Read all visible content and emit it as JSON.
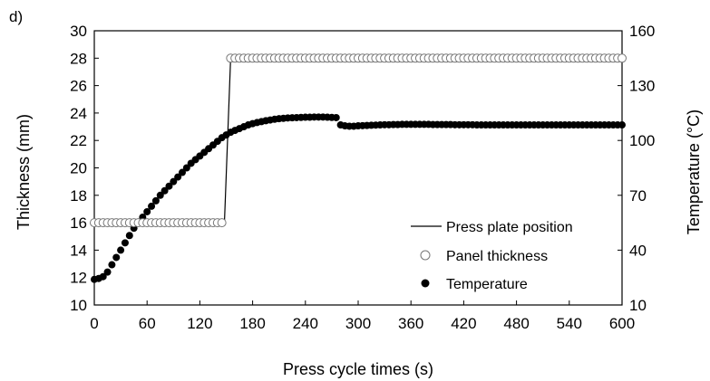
{
  "panel_label": "d)",
  "chart_data": {
    "type": "line",
    "xlabel": "Press cycle times (s)",
    "ylabel": "Thickness (mm)",
    "y2label": "Temperature (°C)",
    "xlim": [
      0,
      600
    ],
    "ylim": [
      10,
      30
    ],
    "y2lim": [
      10,
      160
    ],
    "x_ticks": [
      0,
      60,
      120,
      180,
      240,
      300,
      360,
      420,
      480,
      540,
      600
    ],
    "y_ticks": [
      10,
      12,
      14,
      16,
      18,
      20,
      22,
      24,
      26,
      28,
      30
    ],
    "y2_ticks": [
      10,
      40,
      70,
      100,
      130,
      160
    ],
    "grid": false,
    "legend_position": "bottom-right",
    "legend": [
      "Press plate position",
      "Panel thickness",
      "Temperature"
    ],
    "series": [
      {
        "name": "Press plate position",
        "axis": "left",
        "style": "line",
        "x": [
          0,
          148,
          155,
          600
        ],
        "y": [
          16.1,
          16.1,
          28.0,
          28.0
        ]
      },
      {
        "name": "Panel thickness",
        "axis": "left",
        "style": "open-circle",
        "x": [
          0,
          5,
          10,
          15,
          20,
          25,
          30,
          35,
          40,
          45,
          50,
          55,
          60,
          65,
          70,
          75,
          80,
          85,
          90,
          95,
          100,
          105,
          110,
          115,
          120,
          125,
          130,
          135,
          140,
          145,
          155,
          160,
          165,
          170,
          175,
          180,
          185,
          190,
          195,
          200,
          205,
          210,
          215,
          220,
          225,
          230,
          235,
          240,
          245,
          250,
          255,
          260,
          265,
          270,
          275,
          280,
          285,
          290,
          295,
          300,
          305,
          310,
          315,
          320,
          325,
          330,
          335,
          340,
          345,
          350,
          355,
          360,
          365,
          370,
          375,
          380,
          385,
          390,
          395,
          400,
          405,
          410,
          415,
          420,
          425,
          430,
          435,
          440,
          445,
          450,
          455,
          460,
          465,
          470,
          475,
          480,
          485,
          490,
          495,
          500,
          505,
          510,
          515,
          520,
          525,
          530,
          535,
          540,
          545,
          550,
          555,
          560,
          565,
          570,
          575,
          580,
          585,
          590,
          595,
          600
        ],
        "y": [
          16.0,
          16.0,
          16.0,
          16.0,
          16.0,
          16.0,
          16.0,
          16.0,
          16.0,
          16.0,
          16.0,
          16.0,
          16.0,
          16.0,
          16.0,
          16.0,
          16.0,
          16.0,
          16.0,
          16.0,
          16.0,
          16.0,
          16.0,
          16.0,
          16.0,
          16.0,
          16.0,
          16.0,
          16.0,
          16.0,
          28.0,
          28.0,
          28.0,
          28.0,
          28.0,
          28.0,
          28.0,
          28.0,
          28.0,
          28.0,
          28.0,
          28.0,
          28.0,
          28.0,
          28.0,
          28.0,
          28.0,
          28.0,
          28.0,
          28.0,
          28.0,
          28.0,
          28.0,
          28.0,
          28.0,
          28.0,
          28.0,
          28.0,
          28.0,
          28.0,
          28.0,
          28.0,
          28.0,
          28.0,
          28.0,
          28.0,
          28.0,
          28.0,
          28.0,
          28.0,
          28.0,
          28.0,
          28.0,
          28.0,
          28.0,
          28.0,
          28.0,
          28.0,
          28.0,
          28.0,
          28.0,
          28.0,
          28.0,
          28.0,
          28.0,
          28.0,
          28.0,
          28.0,
          28.0,
          28.0,
          28.0,
          28.0,
          28.0,
          28.0,
          28.0,
          28.0,
          28.0,
          28.0,
          28.0,
          28.0,
          28.0,
          28.0,
          28.0,
          28.0,
          28.0,
          28.0,
          28.0,
          28.0,
          28.0,
          28.0,
          28.0,
          28.0,
          28.0,
          28.0,
          28.0,
          28.0,
          28.0,
          28.0,
          28.0,
          28.0
        ]
      },
      {
        "name": "Temperature",
        "axis": "right",
        "style": "filled-circle",
        "x": [
          0,
          5,
          10,
          15,
          20,
          25,
          30,
          35,
          40,
          45,
          50,
          55,
          60,
          65,
          70,
          75,
          80,
          85,
          90,
          95,
          100,
          105,
          110,
          115,
          120,
          125,
          130,
          135,
          140,
          145,
          150,
          155,
          160,
          165,
          170,
          175,
          180,
          185,
          190,
          195,
          200,
          205,
          210,
          215,
          220,
          225,
          230,
          235,
          240,
          245,
          250,
          255,
          260,
          265,
          270,
          275,
          280,
          285,
          290,
          295,
          300,
          305,
          310,
          315,
          320,
          325,
          330,
          335,
          340,
          345,
          350,
          355,
          360,
          365,
          370,
          375,
          380,
          385,
          390,
          395,
          400,
          405,
          410,
          415,
          420,
          425,
          430,
          435,
          440,
          445,
          450,
          455,
          460,
          465,
          470,
          475,
          480,
          485,
          490,
          495,
          500,
          505,
          510,
          515,
          520,
          525,
          530,
          535,
          540,
          545,
          550,
          555,
          560,
          565,
          570,
          575,
          580,
          585,
          590,
          595,
          600
        ],
        "y": [
          24,
          24.5,
          25.5,
          28,
          32,
          36,
          40,
          44,
          48,
          52,
          55,
          58,
          61,
          64,
          67,
          70,
          72.5,
          75,
          77.5,
          80,
          82.5,
          85,
          87.5,
          89.5,
          91.5,
          93.5,
          95.5,
          97.5,
          99.5,
          101.5,
          103,
          104.5,
          105.5,
          106.5,
          107.5,
          108.5,
          109.2,
          109.8,
          110.3,
          110.8,
          111.2,
          111.6,
          111.9,
          112.1,
          112.3,
          112.4,
          112.5,
          112.6,
          112.7,
          112.7,
          112.8,
          112.8,
          112.8,
          112.7,
          112.6,
          112.5,
          108.5,
          108.0,
          107.8,
          107.8,
          108.0,
          108.1,
          108.2,
          108.3,
          108.4,
          108.5,
          108.6,
          108.6,
          108.7,
          108.7,
          108.8,
          108.8,
          108.8,
          108.8,
          108.8,
          108.8,
          108.8,
          108.7,
          108.7,
          108.7,
          108.7,
          108.7,
          108.6,
          108.6,
          108.6,
          108.6,
          108.6,
          108.5,
          108.5,
          108.5,
          108.5,
          108.5,
          108.5,
          108.5,
          108.5,
          108.5,
          108.5,
          108.5,
          108.5,
          108.5,
          108.5,
          108.5,
          108.5,
          108.5,
          108.5,
          108.5,
          108.5,
          108.5,
          108.5,
          108.5,
          108.5,
          108.5,
          108.5,
          108.5,
          108.5,
          108.5,
          108.5,
          108.5,
          108.5,
          108.5,
          108.5
        ]
      }
    ]
  }
}
